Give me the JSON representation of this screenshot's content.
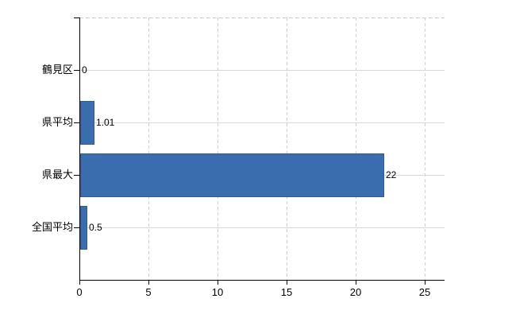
{
  "chart_data": {
    "type": "bar",
    "orientation": "horizontal",
    "title": "",
    "categories": [
      "鶴見区",
      "県平均",
      "県最大",
      "全国平均"
    ],
    "values": [
      0,
      1.01,
      22,
      0.5
    ],
    "value_labels": [
      "0",
      "1.01",
      "22",
      "0.5"
    ],
    "x_tick_labels": [
      "0",
      "5",
      "10",
      "15",
      "20",
      "25"
    ],
    "x_tick_values": [
      0,
      5,
      10,
      15,
      20,
      25
    ],
    "xlim": [
      0,
      26.4
    ],
    "grid": true,
    "legend": false,
    "colors": {
      "bar_fill": "#3A6DAD",
      "bar_border": "#2D5A9B",
      "grid_solid": "#D9D9D9",
      "grid_dash": "#CFCFCF",
      "axis": "#000000",
      "text": "#000000",
      "background": "#FFFFFF"
    }
  }
}
